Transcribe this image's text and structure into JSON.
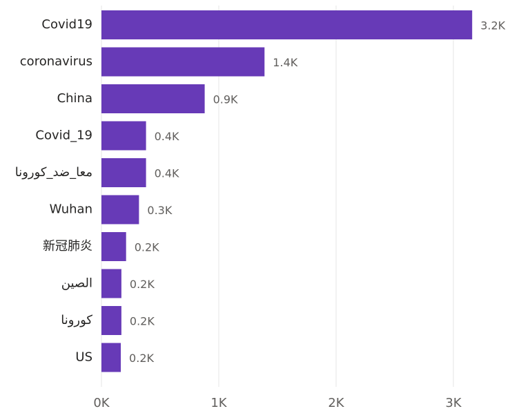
{
  "chart_data": {
    "type": "bar",
    "orientation": "horizontal",
    "title": "",
    "xlabel": "",
    "ylabel": "",
    "categories": [
      "Covid19",
      "coronavirus",
      "China",
      "Covid_19",
      "معا_ضد_كورونا",
      "Wuhan",
      "新冠肺炎",
      "الصين",
      "كورونا",
      "US"
    ],
    "values": [
      3160,
      1390,
      880,
      380,
      380,
      320,
      210,
      170,
      170,
      165
    ],
    "value_labels": [
      "3.2K",
      "1.4K",
      "0.9K",
      "0.4K",
      "0.4K",
      "0.3K",
      "0.2K",
      "0.2K",
      "0.2K",
      "0.2K"
    ],
    "xlim": [
      0,
      3500
    ],
    "x_ticks": [
      0,
      1000,
      2000,
      3000
    ],
    "x_tick_labels": [
      "0K",
      "1K",
      "2K",
      "3K"
    ],
    "grid": true,
    "legend": "none",
    "colors": {
      "bar": "#673ab7",
      "grid": "#e6e6e6",
      "category_text": "#252423",
      "value_text": "#605e5c",
      "tick_text": "#605e5c"
    }
  }
}
